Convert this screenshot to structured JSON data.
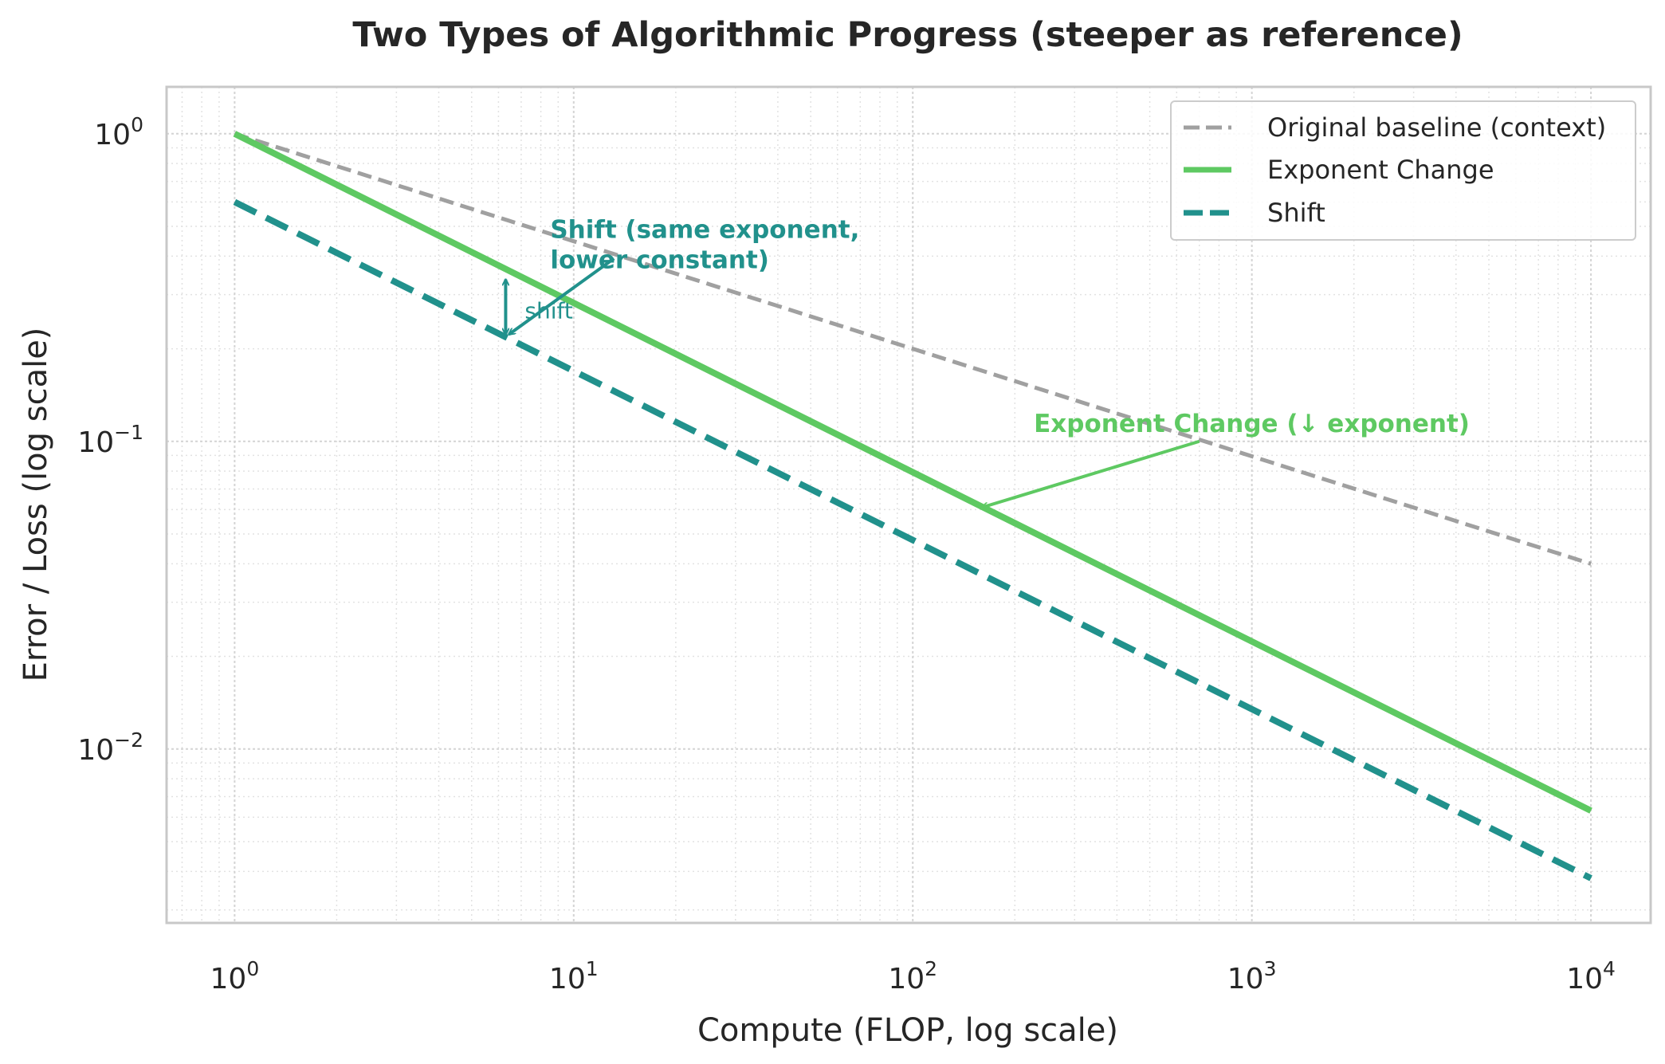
{
  "chart_data": {
    "type": "line",
    "title": "Two Types of Algorithmic Progress (steeper as reference)",
    "xlabel": "Compute (FLOP, log scale)",
    "ylabel": "Error / Loss (log scale)",
    "x_scale": "log",
    "y_scale": "log",
    "xlim": [
      0.63,
      15000
    ],
    "ylim": [
      0.00272,
      1.42
    ],
    "x_ticks": [
      {
        "value": 1,
        "base": "10",
        "exp": "0"
      },
      {
        "value": 10,
        "base": "10",
        "exp": "1"
      },
      {
        "value": 100,
        "base": "10",
        "exp": "2"
      },
      {
        "value": 1000,
        "base": "10",
        "exp": "3"
      },
      {
        "value": 10000,
        "base": "10",
        "exp": "4"
      }
    ],
    "y_ticks": [
      {
        "value": 1,
        "base": "10",
        "exp": "0"
      },
      {
        "value": 0.1,
        "base": "10",
        "exp": "−1"
      },
      {
        "value": 0.01,
        "base": "10",
        "exp": "−2"
      }
    ],
    "grid": true,
    "legend_position": "top-right",
    "series": [
      {
        "name": "Original baseline (context)",
        "color": "#a0a0a0",
        "style": "dashed",
        "x": [
          1,
          10000
        ],
        "y": [
          1.0,
          0.04
        ]
      },
      {
        "name": "Exponent Change",
        "color": "#5ec962",
        "style": "solid",
        "x": [
          1,
          10000
        ],
        "y": [
          1.0,
          0.0063
        ]
      },
      {
        "name": "Shift",
        "color": "#21918c",
        "style": "dashed",
        "x": [
          1,
          10000
        ],
        "y": [
          0.6,
          0.0038
        ]
      }
    ],
    "annotations": [
      {
        "id": "shift-label",
        "text_lines": [
          "Shift (same exponent,",
          "lower constant)"
        ],
        "color": "#21918c",
        "text_at": [
          9.5,
          0.4
        ],
        "arrow_to": [
          6.3,
          0.22
        ]
      },
      {
        "id": "shift-mark",
        "text": "shift",
        "color": "#21918c",
        "at": [
          6.3,
          0.27
        ]
      },
      {
        "id": "exponent-label",
        "text": "Exponent Change (↓ exponent)",
        "color": "#5ec962",
        "text_at": [
          230,
          0.112
        ],
        "arrow_to": [
          160,
          0.061
        ]
      }
    ]
  }
}
